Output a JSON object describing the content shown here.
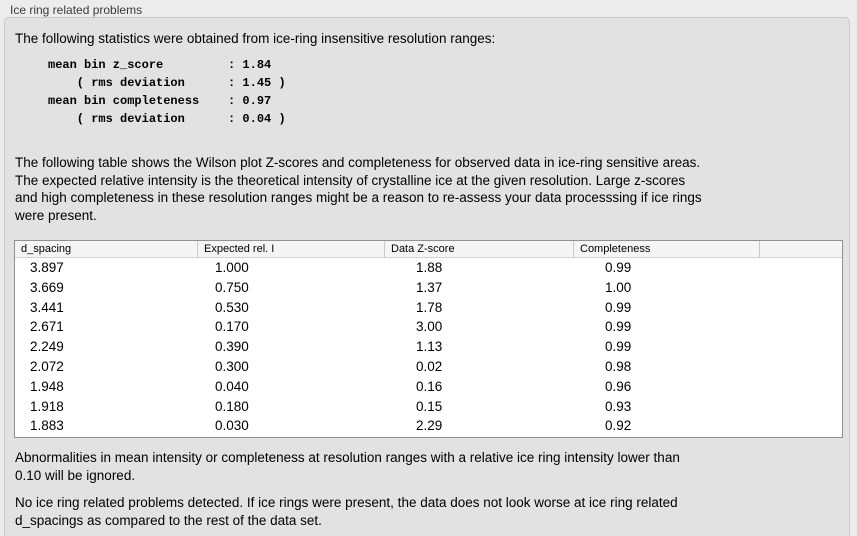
{
  "panel": {
    "title": "Ice ring related problems"
  },
  "colors": {
    "outer_background": "#ececec",
    "box_background": "#e2e2e2",
    "box_border": "#c9c9c9",
    "table_background": "#ffffff",
    "table_border": "#919191",
    "header_background": "#f5f5f5",
    "text": "#000000",
    "label_text": "#3b3b3b"
  },
  "intro": {
    "text": "The following statistics were obtained from ice-ring insensitive resolution ranges:"
  },
  "stats_block": {
    "lines": [
      "mean bin z_score         : 1.84",
      "    ( rms deviation      : 1.45 )",
      "mean bin completeness    : 0.97",
      "    ( rms deviation      : 0.04 )"
    ]
  },
  "table_note": {
    "lines": [
      "The following table shows the Wilson plot Z-scores and completeness for observed data in ice-ring sensitive areas.",
      "The expected relative intensity is the theoretical intensity of crystalline ice at the given resolution. Large z-scores",
      "and high completeness in these resolution ranges might be a reason to re-assess your data processsing if ice rings",
      "were present."
    ]
  },
  "table": {
    "columns": [
      "d_spacing",
      "Expected rel. I",
      "Data Z-score",
      "Completeness",
      ""
    ],
    "rows": [
      [
        "3.897",
        "1.000",
        "1.88",
        "0.99"
      ],
      [
        "3.669",
        "0.750",
        "1.37",
        "1.00"
      ],
      [
        "3.441",
        "0.530",
        "1.78",
        "0.99"
      ],
      [
        "2.671",
        "0.170",
        "3.00",
        "0.99"
      ],
      [
        "2.249",
        "0.390",
        "1.13",
        "0.99"
      ],
      [
        "2.072",
        "0.300",
        "0.02",
        "0.98"
      ],
      [
        "1.948",
        "0.040",
        "0.16",
        "0.96"
      ],
      [
        "1.918",
        "0.180",
        "0.15",
        "0.93"
      ],
      [
        "1.883",
        "0.030",
        "2.29",
        "0.92"
      ]
    ]
  },
  "ignore_note": {
    "lines": [
      "Abnormalities in mean intensity or completeness at resolution ranges with a relative ice ring intensity lower than",
      "0.10 will be ignored."
    ]
  },
  "conclusion": {
    "lines": [
      "No ice ring related problems detected. If ice rings were present, the data does not look worse at ice ring related",
      "d_spacings as compared to the rest of the data set."
    ]
  }
}
